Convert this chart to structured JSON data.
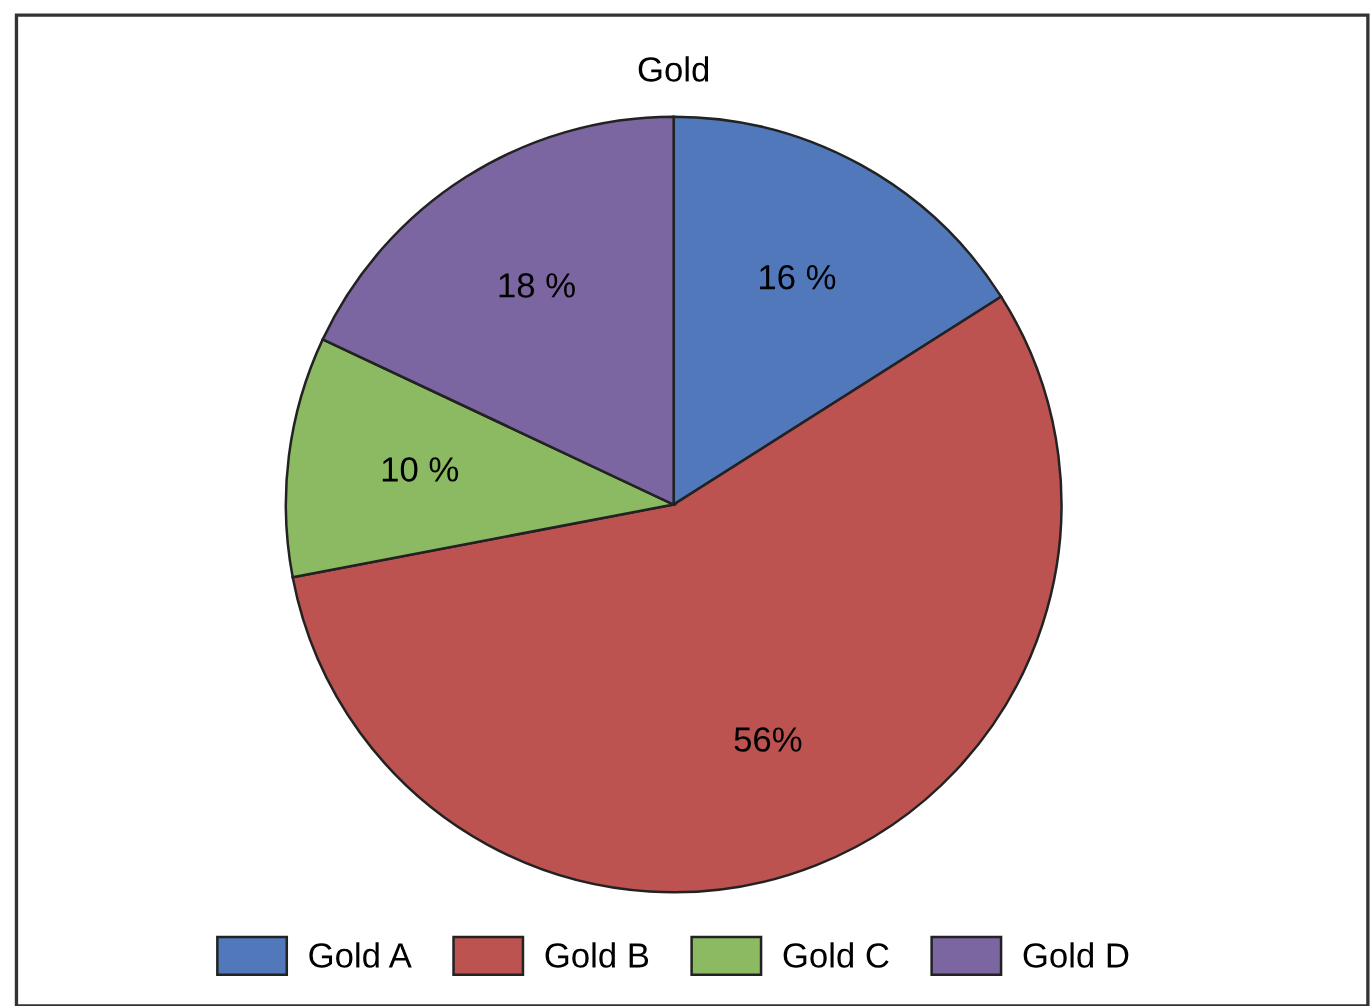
{
  "chart_data": {
    "type": "pie",
    "title": "Gold",
    "categories": [
      "Gold A",
      "Gold B",
      "Gold C",
      "Gold D"
    ],
    "values": [
      16,
      56,
      10,
      18
    ],
    "value_labels": [
      "16 %",
      "56%",
      "10 %",
      "18 %"
    ],
    "colors": [
      "#5078bb",
      "#bc5351",
      "#8cba62",
      "#7b66a1"
    ],
    "legend": "bottom"
  }
}
